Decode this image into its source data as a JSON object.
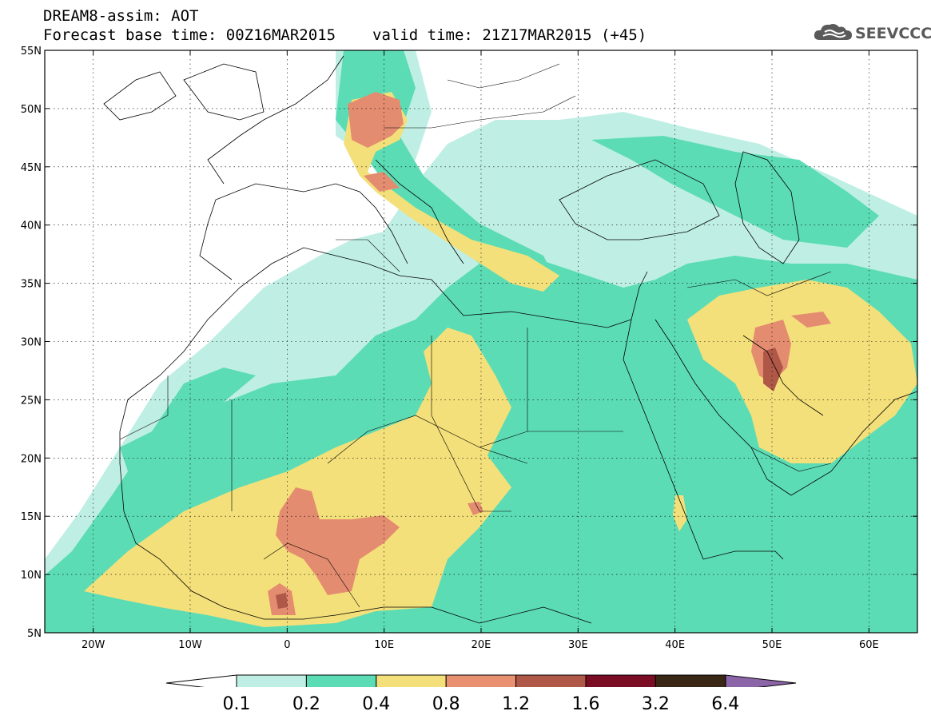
{
  "title_line1": "DREAM8-assim: AOT",
  "title_base": "Forecast base time: 00Z16MAR2015",
  "title_valid": "valid time: 21Z17MAR2015 (+45)",
  "logo_text": "SEEVCCC",
  "map": {
    "lon_min": -25,
    "lon_max": 65,
    "lat_min": 5,
    "lat_max": 55,
    "lat_ticks": [
      {
        "value": 5,
        "label": "5N"
      },
      {
        "value": 10,
        "label": "10N"
      },
      {
        "value": 15,
        "label": "15N"
      },
      {
        "value": 20,
        "label": "20N"
      },
      {
        "value": 25,
        "label": "25N"
      },
      {
        "value": 30,
        "label": "30N"
      },
      {
        "value": 35,
        "label": "35N"
      },
      {
        "value": 40,
        "label": "40N"
      },
      {
        "value": 45,
        "label": "45N"
      },
      {
        "value": 50,
        "label": "50N"
      },
      {
        "value": 55,
        "label": "55N"
      }
    ],
    "lon_ticks": [
      {
        "value": -20,
        "label": "20W"
      },
      {
        "value": -10,
        "label": "10W"
      },
      {
        "value": 0,
        "label": "0"
      },
      {
        "value": 10,
        "label": "10E"
      },
      {
        "value": 20,
        "label": "20E"
      },
      {
        "value": 30,
        "label": "30E"
      },
      {
        "value": 40,
        "label": "40E"
      },
      {
        "value": 50,
        "label": "50E"
      },
      {
        "value": 60,
        "label": "60E"
      }
    ],
    "gridlines": "dotted"
  },
  "colorbar": {
    "labels": [
      "0.1",
      "0.2",
      "0.4",
      "0.8",
      "1.2",
      "1.6",
      "3.2",
      "6.4"
    ],
    "below_color": "#ffffff",
    "colors": [
      "#bfefe4",
      "#5cdcb4",
      "#f4e07a",
      "#e89070",
      "#b05848",
      "#7a0c24",
      "#3a2614"
    ],
    "above_color": "#8c64a8"
  },
  "colors": {
    "c1": "#bfefe4",
    "c2": "#5cdcb4",
    "c3": "#f4e07a",
    "c4": "#e48c70",
    "c5": "#b05848"
  }
}
